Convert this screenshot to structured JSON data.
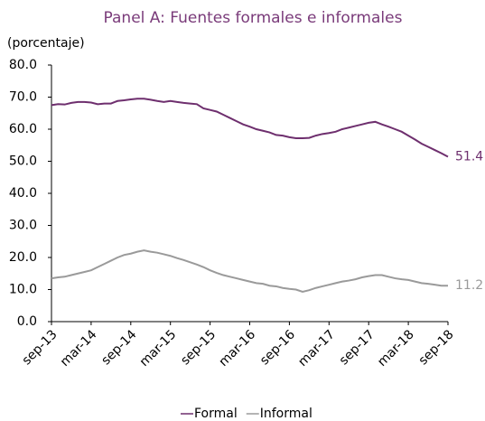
{
  "chart_data": {
    "type": "line",
    "title": "Panel A: Fuentes formales e informales",
    "ylabel": "(porcentaje)",
    "categories": [
      "sep-13",
      null,
      null,
      null,
      null,
      null,
      "mar-14",
      null,
      null,
      null,
      null,
      null,
      "sep-14",
      null,
      null,
      null,
      null,
      null,
      "mar-15",
      null,
      null,
      null,
      null,
      null,
      "sep-15",
      null,
      null,
      null,
      null,
      null,
      "mar-16",
      null,
      null,
      null,
      null,
      null,
      "sep-16",
      null,
      null,
      null,
      null,
      null,
      "mar-17",
      null,
      null,
      null,
      null,
      null,
      "sep-17",
      null,
      null,
      null,
      null,
      null,
      "mar-18",
      null,
      null,
      null,
      null,
      null,
      "sep-18"
    ],
    "series": [
      {
        "name": "Formal",
        "color": "#6e2f6e",
        "values": [
          67.5,
          67.8,
          67.7,
          68.2,
          68.5,
          68.5,
          68.3,
          67.8,
          68.0,
          68.0,
          68.8,
          69.0,
          69.3,
          69.5,
          69.5,
          69.2,
          68.8,
          68.5,
          68.8,
          68.5,
          68.2,
          68.0,
          67.8,
          66.5,
          66.0,
          65.5,
          64.5,
          63.5,
          62.5,
          61.5,
          60.8,
          60.0,
          59.5,
          59.0,
          58.2,
          58.0,
          57.5,
          57.2,
          57.2,
          57.3,
          58.0,
          58.5,
          58.8,
          59.2,
          60.0,
          60.5,
          61.0,
          61.5,
          62.0,
          62.3,
          61.5,
          60.8,
          60.0,
          59.2,
          58.0,
          56.8,
          55.5,
          54.5,
          53.5,
          52.5,
          51.4
        ]
      },
      {
        "name": "Informal",
        "color": "#9a9a9a",
        "values": [
          13.5,
          13.8,
          14.0,
          14.5,
          15.0,
          15.5,
          16.0,
          17.0,
          18.0,
          19.0,
          20.0,
          20.8,
          21.2,
          21.8,
          22.2,
          21.8,
          21.5,
          21.0,
          20.5,
          19.8,
          19.2,
          18.5,
          17.8,
          17.0,
          16.0,
          15.2,
          14.5,
          14.0,
          13.5,
          13.0,
          12.5,
          12.0,
          11.8,
          11.2,
          11.0,
          10.5,
          10.2,
          10.0,
          9.3,
          9.8,
          10.5,
          11.0,
          11.5,
          12.0,
          12.5,
          12.8,
          13.2,
          13.8,
          14.2,
          14.5,
          14.5,
          14.0,
          13.5,
          13.2,
          13.0,
          12.5,
          12.0,
          11.8,
          11.5,
          11.2,
          11.2
        ]
      }
    ],
    "ylim": [
      0,
      80
    ],
    "yticks": [
      {
        "value": 0,
        "label": "0.0"
      },
      {
        "value": 10,
        "label": "10.0"
      },
      {
        "value": 20,
        "label": "20.0"
      },
      {
        "value": 30,
        "label": "30.0"
      },
      {
        "value": 40,
        "label": "40.0"
      },
      {
        "value": 50,
        "label": "50.0"
      },
      {
        "value": 60,
        "label": "60.0"
      },
      {
        "value": 70,
        "label": "70.0"
      },
      {
        "value": 80,
        "label": "80.0"
      }
    ],
    "grid": false,
    "legend": "bottom"
  }
}
